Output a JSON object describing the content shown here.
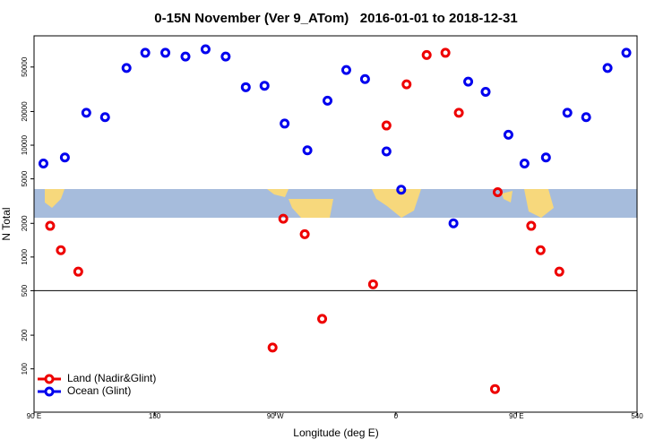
{
  "chart_data": {
    "type": "scatter",
    "title": "0-15N November (Ver 9_ATom)   2016-01-01 to 2018-12-31",
    "xlabel": "Longitude (deg E)",
    "ylabel": "N Total",
    "log_y": true,
    "legend": "lower left",
    "xlim": [
      90,
      540
    ],
    "xticks": [
      {
        "value": 90,
        "label": "90 E"
      },
      180,
      {
        "value": 270,
        "label": "90 W"
      },
      {
        "value": 360,
        "label": "0"
      },
      {
        "value": 450,
        "label": "90 E"
      },
      540
    ],
    "ylim": [
      41,
      95000
    ],
    "yticks": [
      100,
      200,
      500,
      1000,
      2000,
      5000,
      10000,
      20000,
      50000
    ],
    "series": [
      {
        "name": "Land (Nadir&Glint)",
        "color": "#ee0000",
        "x": [
          102,
          110,
          123,
          268,
          276,
          292,
          305,
          343,
          353,
          368,
          383,
          397,
          407,
          434,
          436,
          461,
          468,
          482
        ],
        "values": [
          1900,
          1150,
          740,
          155,
          2200,
          1600,
          280,
          570,
          15000,
          35000,
          64000,
          67000,
          19500,
          66,
          3800,
          1900,
          1150,
          740
        ]
      },
      {
        "name": "Ocean (Glint)",
        "color": "#0000ee",
        "x": [
          97,
          113,
          129,
          143,
          159,
          173,
          188,
          203,
          218,
          233,
          248,
          262,
          277,
          294,
          309,
          323,
          337,
          353,
          364,
          403,
          414,
          427,
          444,
          456,
          472,
          488,
          502,
          518,
          532
        ],
        "values": [
          6850,
          7770,
          19500,
          17800,
          49000,
          67000,
          67000,
          62000,
          72000,
          62000,
          33000,
          34000,
          15600,
          9000,
          25000,
          47000,
          39000,
          8800,
          4000,
          2000,
          37000,
          30000,
          12400,
          6850,
          7770,
          19500,
          17800,
          49000,
          67000
        ]
      }
    ]
  }
}
